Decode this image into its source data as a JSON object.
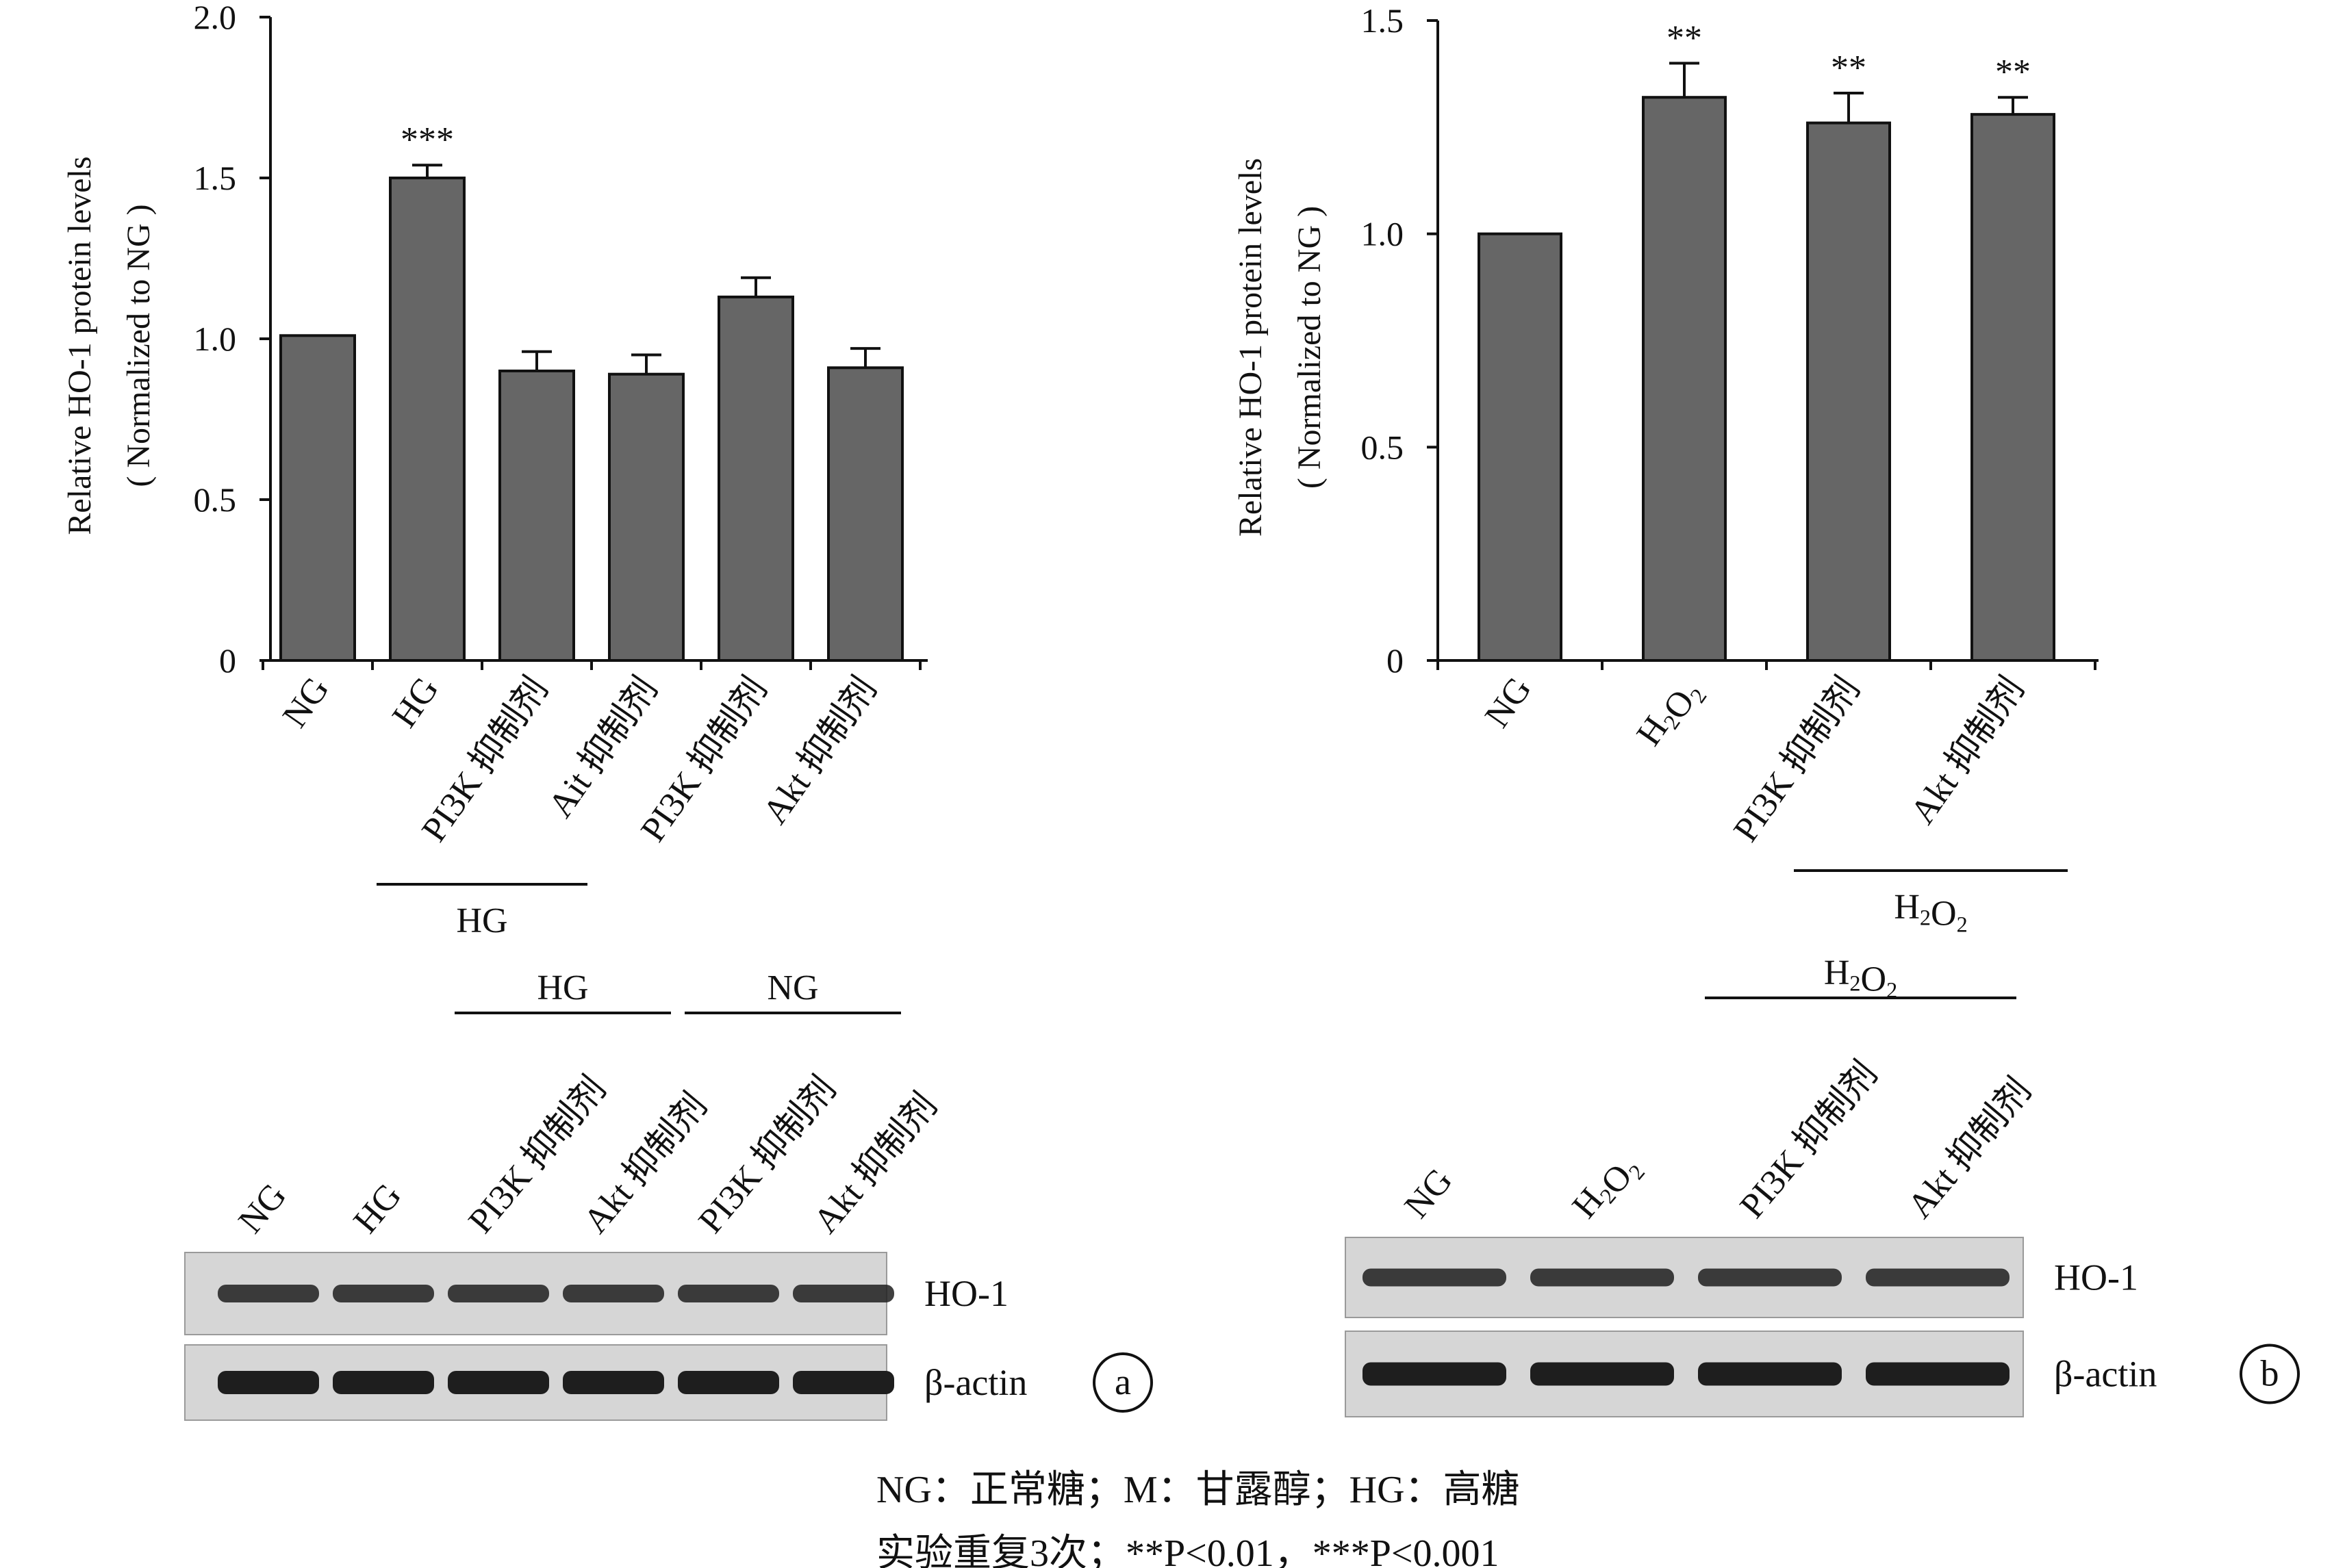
{
  "chart_data": [
    {
      "type": "bar",
      "panel": "a",
      "categories": [
        "NG",
        "HG",
        "PI3K 抑制剂",
        "Ait 抑制剂",
        "PI3K 抑制剂",
        "Akt 抑制剂"
      ],
      "values": [
        1.01,
        1.5,
        0.9,
        0.89,
        1.13,
        0.91
      ],
      "errors": [
        0,
        0.04,
        0.06,
        0.06,
        0.06,
        0.06
      ],
      "significance": [
        "",
        "***",
        "",
        "",
        "",
        ""
      ],
      "ylabel": [
        "Relative HO-1 protein levels",
        "( Normalized to NG )"
      ],
      "ylim": [
        0,
        2.0
      ],
      "yticks": [
        "0",
        "0.5",
        "1.0",
        "1.5",
        "2.0"
      ],
      "group_bracket": {
        "label": "HG",
        "from_category": 1,
        "to_category": 2
      },
      "grid": false
    },
    {
      "type": "bar",
      "panel": "b",
      "categories": [
        "NG",
        "H2O2",
        "PI3K 抑制剂",
        "Akt 抑制剂"
      ],
      "values": [
        1.0,
        1.32,
        1.26,
        1.28
      ],
      "errors": [
        0,
        0.08,
        0.07,
        0.04
      ],
      "significance": [
        "",
        "**",
        "**",
        "**"
      ],
      "ylabel": [
        "Relative HO-1 protein levels",
        "( Normalized to NG )"
      ],
      "ylim": [
        0,
        1.5
      ],
      "yticks": [
        "0",
        "0.5",
        "1.0",
        "1.5"
      ],
      "group_bracket": {
        "label": "H2O2",
        "from_category": 2,
        "to_category": 3
      },
      "grid": false
    }
  ],
  "blots": {
    "a": {
      "lanes": [
        "NG",
        "HG",
        "PI3K 抑制剂",
        "Akt 抑制剂",
        "PI3K 抑制剂",
        "Akt 抑制剂"
      ],
      "groups": [
        {
          "label": "HG",
          "from_lane": 2,
          "to_lane": 3
        },
        {
          "label": "NG",
          "from_lane": 4,
          "to_lane": 5
        }
      ],
      "rows": [
        "HO-1",
        "β-actin"
      ],
      "panel_letter": "a"
    },
    "b": {
      "lanes": [
        "NG",
        "H2O2",
        "PI3K 抑制剂",
        "Akt 抑制剂"
      ],
      "groups": [
        {
          "label": "H2O2",
          "from_lane": 2,
          "to_lane": 3
        }
      ],
      "rows": [
        "HO-1",
        "β-actin"
      ],
      "panel_letter": "b"
    }
  },
  "notes": {
    "line1": "NG：正常糖；M：甘露醇；HG：高糖",
    "line2": "实验重复3次；**P<0.01，***P<0.001"
  },
  "colors": {
    "bar_fill": "#666666",
    "axis": "#111111",
    "blot_bg": "#d6d6d6",
    "band": "#1e1e1e"
  }
}
